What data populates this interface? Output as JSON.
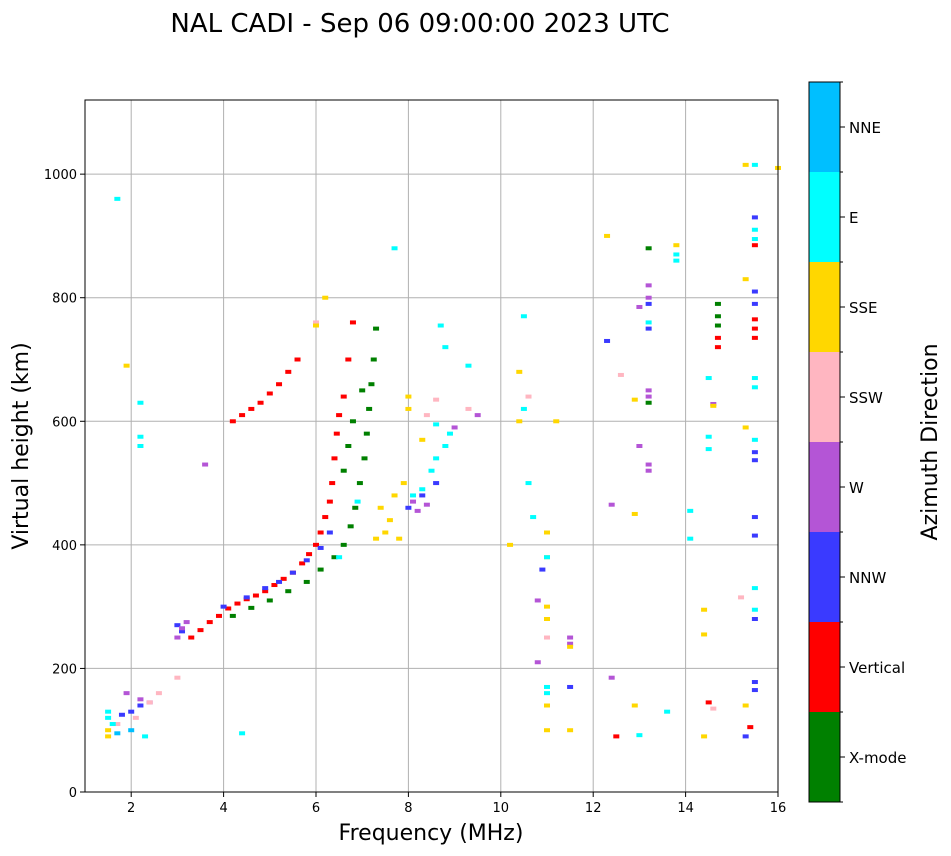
{
  "chart_data": {
    "type": "scatter",
    "title": "NAL CADI - Sep 06 09:00:00 2023 UTC",
    "xlabel": "Frequency (MHz)",
    "ylabel": "Virtual height (km)",
    "xlim": [
      1,
      16
    ],
    "ylim": [
      0,
      1120
    ],
    "xticks": [
      2,
      4,
      6,
      8,
      10,
      12,
      14,
      16
    ],
    "yticks": [
      0,
      200,
      400,
      600,
      800,
      1000
    ],
    "grid": true,
    "colorbar": {
      "label": "Azimuth Direction",
      "categories": [
        "X-mode",
        "Vertical",
        "NNW",
        "W",
        "SSW",
        "SSE",
        "E",
        "NNE"
      ],
      "colors": {
        "X-mode": "#008000",
        "Vertical": "#ff0000",
        "NNW": "#3a3aff",
        "W": "#b455d6",
        "SSW": "#ffb6c1",
        "SSE": "#ffd700",
        "E": "#00ffff",
        "NNE": "#00bfff"
      }
    },
    "series": [
      {
        "name": "Vertical",
        "points": [
          [
            3.3,
            250
          ],
          [
            3.5,
            262
          ],
          [
            3.7,
            275
          ],
          [
            3.9,
            285
          ],
          [
            4.1,
            297
          ],
          [
            4.3,
            305
          ],
          [
            4.5,
            312
          ],
          [
            4.7,
            318
          ],
          [
            4.9,
            325
          ],
          [
            5.1,
            335
          ],
          [
            5.3,
            345
          ],
          [
            5.5,
            355
          ],
          [
            5.7,
            370
          ],
          [
            5.85,
            385
          ],
          [
            6.0,
            400
          ],
          [
            6.1,
            420
          ],
          [
            6.2,
            445
          ],
          [
            6.3,
            470
          ],
          [
            6.35,
            500
          ],
          [
            6.4,
            540
          ],
          [
            6.45,
            580
          ],
          [
            6.5,
            610
          ],
          [
            6.6,
            640
          ],
          [
            6.7,
            700
          ],
          [
            6.8,
            760
          ],
          [
            4.2,
            600
          ],
          [
            4.4,
            610
          ],
          [
            4.6,
            620
          ],
          [
            4.8,
            630
          ],
          [
            5.0,
            645
          ],
          [
            5.2,
            660
          ],
          [
            5.4,
            680
          ],
          [
            5.6,
            700
          ],
          [
            14.7,
            720
          ],
          [
            14.7,
            735
          ],
          [
            15.5,
            735
          ],
          [
            15.5,
            750
          ],
          [
            15.5,
            765
          ],
          [
            15.5,
            885
          ],
          [
            12.5,
            90
          ],
          [
            15.4,
            105
          ],
          [
            14.5,
            145
          ]
        ]
      },
      {
        "name": "X-mode",
        "points": [
          [
            4.2,
            285
          ],
          [
            4.6,
            298
          ],
          [
            5.0,
            310
          ],
          [
            5.4,
            325
          ],
          [
            5.8,
            340
          ],
          [
            6.1,
            360
          ],
          [
            6.4,
            380
          ],
          [
            6.6,
            400
          ],
          [
            6.75,
            430
          ],
          [
            6.85,
            460
          ],
          [
            6.95,
            500
          ],
          [
            7.05,
            540
          ],
          [
            7.1,
            580
          ],
          [
            7.15,
            620
          ],
          [
            7.2,
            660
          ],
          [
            7.25,
            700
          ],
          [
            7.3,
            750
          ],
          [
            6.6,
            520
          ],
          [
            6.7,
            560
          ],
          [
            6.8,
            600
          ],
          [
            7.0,
            650
          ],
          [
            14.7,
            755
          ],
          [
            14.7,
            770
          ],
          [
            14.7,
            790
          ],
          [
            13.2,
            630
          ],
          [
            13.2,
            880
          ]
        ]
      },
      {
        "name": "NNW",
        "points": [
          [
            1.8,
            125
          ],
          [
            2.0,
            130
          ],
          [
            2.2,
            140
          ],
          [
            3.1,
            260
          ],
          [
            3.0,
            270
          ],
          [
            4.0,
            300
          ],
          [
            4.5,
            315
          ],
          [
            4.9,
            330
          ],
          [
            5.2,
            340
          ],
          [
            5.5,
            355
          ],
          [
            5.8,
            375
          ],
          [
            6.1,
            395
          ],
          [
            6.3,
            420
          ],
          [
            8.0,
            460
          ],
          [
            8.3,
            480
          ],
          [
            8.6,
            500
          ],
          [
            10.9,
            360
          ],
          [
            11.5,
            170
          ],
          [
            12.3,
            730
          ],
          [
            13.2,
            750
          ],
          [
            13.2,
            790
          ],
          [
            15.5,
            280
          ],
          [
            15.5,
            415
          ],
          [
            15.5,
            445
          ],
          [
            15.5,
            537
          ],
          [
            15.5,
            550
          ],
          [
            15.5,
            790
          ],
          [
            15.5,
            810
          ],
          [
            15.5,
            930
          ],
          [
            15.3,
            90
          ],
          [
            15.5,
            165
          ],
          [
            15.5,
            178
          ]
        ]
      },
      {
        "name": "W",
        "points": [
          [
            3.0,
            250
          ],
          [
            3.1,
            265
          ],
          [
            3.2,
            275
          ],
          [
            1.9,
            160
          ],
          [
            2.2,
            150
          ],
          [
            2.4,
            145
          ],
          [
            8.2,
            455
          ],
          [
            8.1,
            470
          ],
          [
            8.4,
            465
          ],
          [
            9.0,
            590
          ],
          [
            9.5,
            610
          ],
          [
            10.8,
            310
          ],
          [
            10.8,
            210
          ],
          [
            11.5,
            240
          ],
          [
            11.5,
            250
          ],
          [
            12.4,
            465
          ],
          [
            13.2,
            520
          ],
          [
            13.2,
            530
          ],
          [
            13.0,
            560
          ],
          [
            13.2,
            640
          ],
          [
            13.2,
            650
          ],
          [
            13.0,
            785
          ],
          [
            13.2,
            800
          ],
          [
            13.2,
            820
          ],
          [
            12.4,
            185
          ],
          [
            14.6,
            628
          ],
          [
            3.6,
            530
          ]
        ]
      },
      {
        "name": "SSW",
        "points": [
          [
            1.7,
            110
          ],
          [
            2.1,
            120
          ],
          [
            2.4,
            145
          ],
          [
            2.6,
            160
          ],
          [
            8.6,
            635
          ],
          [
            8.4,
            610
          ],
          [
            9.3,
            620
          ],
          [
            12.6,
            675
          ],
          [
            14.6,
            135
          ],
          [
            15.2,
            315
          ],
          [
            11.0,
            250
          ],
          [
            6.0,
            760
          ],
          [
            10.6,
            640
          ],
          [
            3.0,
            185
          ]
        ]
      },
      {
        "name": "SSE",
        "points": [
          [
            1.5,
            90
          ],
          [
            1.5,
            100
          ],
          [
            6.2,
            800
          ],
          [
            7.3,
            410
          ],
          [
            7.5,
            420
          ],
          [
            7.6,
            440
          ],
          [
            7.8,
            410
          ],
          [
            7.4,
            460
          ],
          [
            7.7,
            480
          ],
          [
            7.9,
            500
          ],
          [
            8.3,
            570
          ],
          [
            8.0,
            620
          ],
          [
            10.2,
            400
          ],
          [
            10.4,
            600
          ],
          [
            10.4,
            680
          ],
          [
            11.0,
            100
          ],
          [
            11.0,
            140
          ],
          [
            11.0,
            280
          ],
          [
            11.0,
            300
          ],
          [
            11.0,
            380
          ],
          [
            11.0,
            420
          ],
          [
            11.5,
            100
          ],
          [
            11.5,
            235
          ],
          [
            12.3,
            900
          ],
          [
            12.9,
            450
          ],
          [
            12.9,
            635
          ],
          [
            13.8,
            885
          ],
          [
            14.4,
            255
          ],
          [
            14.4,
            295
          ],
          [
            14.4,
            90
          ],
          [
            14.6,
            625
          ],
          [
            15.3,
            140
          ],
          [
            15.3,
            590
          ],
          [
            15.3,
            830
          ],
          [
            15.3,
            1015
          ],
          [
            16.0,
            1010
          ],
          [
            12.9,
            140
          ],
          [
            6.0,
            755
          ],
          [
            1.9,
            690
          ],
          [
            8.0,
            640
          ],
          [
            11.2,
            600
          ]
        ]
      },
      {
        "name": "E",
        "points": [
          [
            1.6,
            110
          ],
          [
            1.5,
            120
          ],
          [
            1.5,
            130
          ],
          [
            2.3,
            90
          ],
          [
            4.4,
            95
          ],
          [
            8.1,
            480
          ],
          [
            8.3,
            490
          ],
          [
            8.5,
            520
          ],
          [
            8.6,
            540
          ],
          [
            8.8,
            560
          ],
          [
            8.9,
            580
          ],
          [
            8.6,
            595
          ],
          [
            8.7,
            755
          ],
          [
            8.8,
            720
          ],
          [
            9.3,
            690
          ],
          [
            10.5,
            770
          ],
          [
            10.5,
            620
          ],
          [
            10.6,
            500
          ],
          [
            10.7,
            445
          ],
          [
            11.0,
            380
          ],
          [
            11.0,
            170
          ],
          [
            11.0,
            160
          ],
          [
            13.2,
            760
          ],
          [
            13.8,
            870
          ],
          [
            13.8,
            860
          ],
          [
            14.1,
            455
          ],
          [
            14.1,
            410
          ],
          [
            14.5,
            575
          ],
          [
            14.5,
            555
          ],
          [
            14.5,
            670
          ],
          [
            13.6,
            130
          ],
          [
            13.0,
            92
          ],
          [
            15.5,
            295
          ],
          [
            15.5,
            330
          ],
          [
            15.5,
            570
          ],
          [
            15.5,
            655
          ],
          [
            15.5,
            670
          ],
          [
            15.5,
            895
          ],
          [
            15.5,
            910
          ],
          [
            15.5,
            1015
          ],
          [
            7.7,
            880
          ],
          [
            1.7,
            960
          ],
          [
            2.2,
            560
          ],
          [
            2.2,
            630
          ],
          [
            2.2,
            575
          ],
          [
            6.9,
            470
          ],
          [
            6.5,
            380
          ]
        ]
      },
      {
        "name": "NNE",
        "points": [
          [
            1.7,
            95
          ],
          [
            2.0,
            100
          ]
        ]
      }
    ]
  }
}
